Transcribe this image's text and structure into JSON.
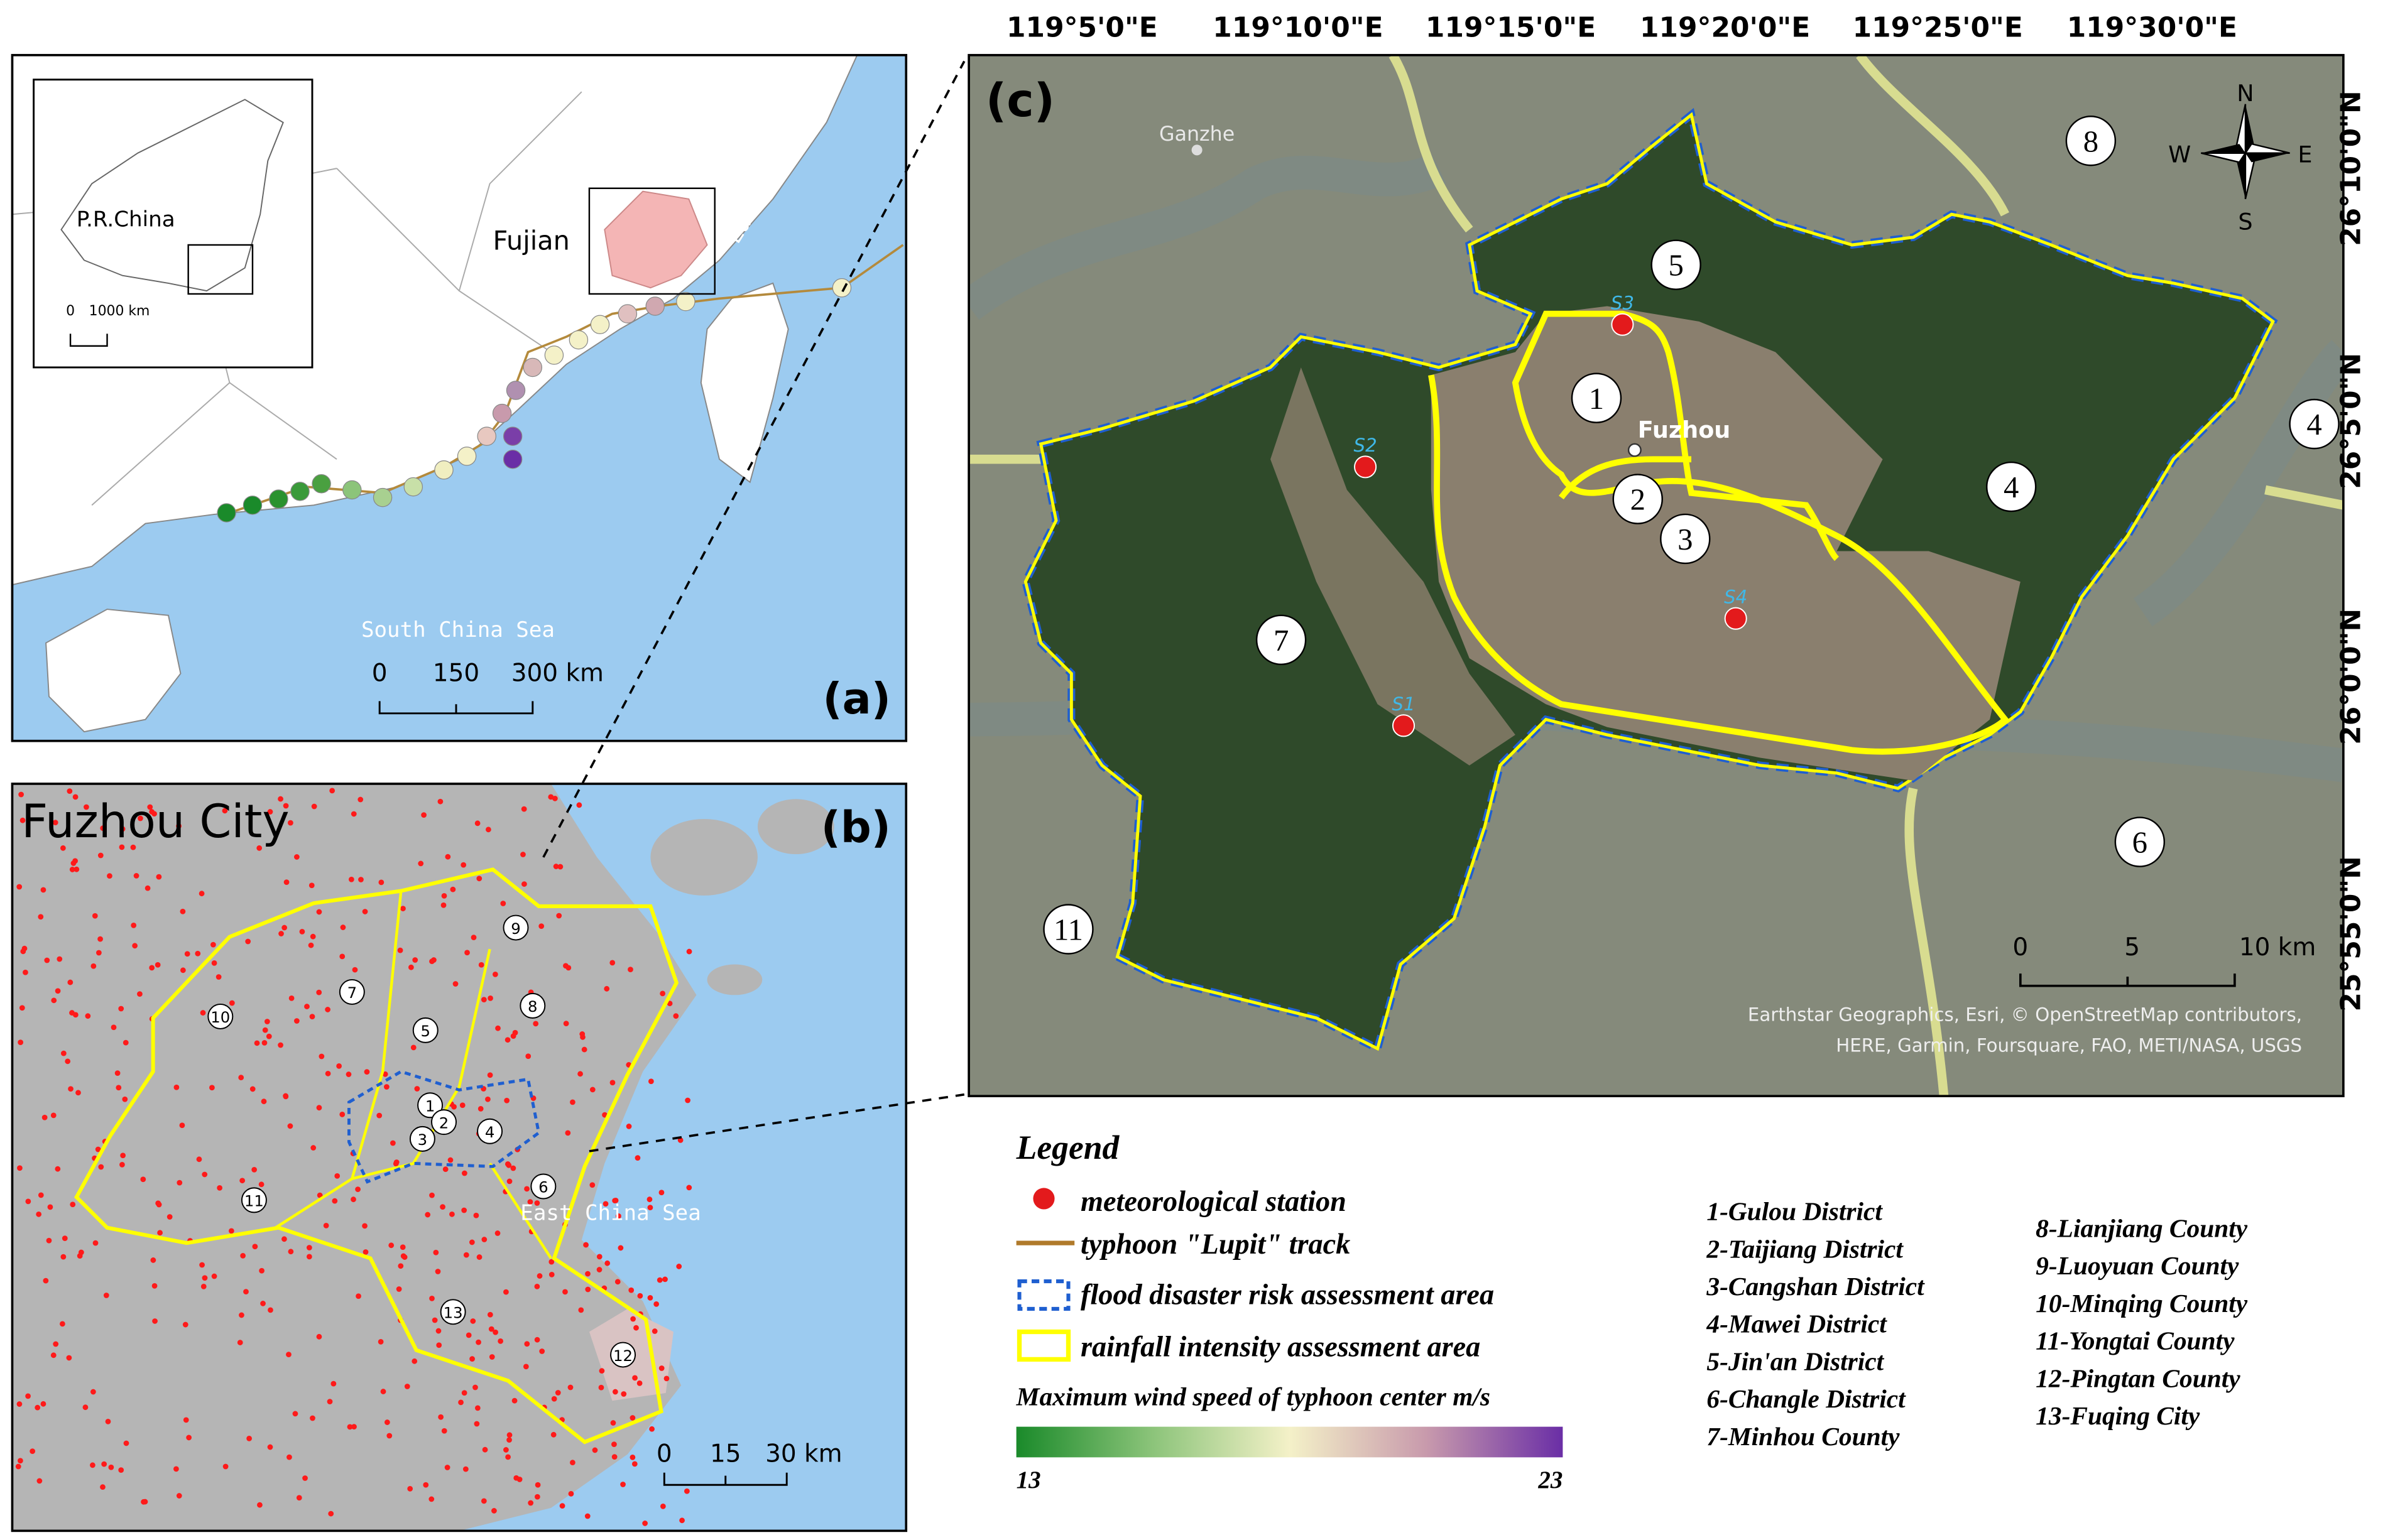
{
  "panel_a": {
    "label": "(a)",
    "inset_country": "P.R.China",
    "inset_scale": [
      "0",
      "1000 km"
    ],
    "province": "Fujian",
    "sea_east": "East China Sea",
    "sea_south": "South China Sea",
    "scale": [
      "0",
      "150",
      "300 km"
    ]
  },
  "panel_b": {
    "title": "Fuzhou City",
    "label": "(b)",
    "sea": "East China Sea",
    "district_numbers": [
      "1",
      "2",
      "3",
      "4",
      "5",
      "6",
      "7",
      "8",
      "9",
      "10",
      "11",
      "12",
      "13"
    ],
    "scale": [
      "0",
      "15",
      "30 km"
    ]
  },
  "panel_c": {
    "label": "(c)",
    "lon_labels": [
      "119°5'0\"E",
      "119°10'0\"E",
      "119°15'0\"E",
      "119°20'0\"E",
      "119°25'0\"E",
      "119°30'0\"E"
    ],
    "lat_labels": [
      "26°10'0\"N",
      "26°5'0\"N",
      "26°0'0\"N",
      "25°55'0\"N"
    ],
    "places": [
      "Ganzhe",
      "Fuzhou"
    ],
    "district_numbers": [
      "1",
      "2",
      "3",
      "4",
      "5",
      "6",
      "7",
      "8",
      "11",
      "4"
    ],
    "stations": [
      "S1",
      "S2",
      "S3",
      "S4"
    ],
    "compass": [
      "N",
      "S",
      "W",
      "E"
    ],
    "scale": [
      "0",
      "5",
      "10 km"
    ],
    "attribution": [
      "Earthstar Geographics, Esri, © OpenStreetMap contributors,",
      "HERE, Garmin, Foursquare, FAO, METI/NASA, USGS"
    ]
  },
  "legend": {
    "title": "Legend",
    "items": [
      "meteorological station",
      "typhoon \"Lupit\" track",
      "flood disaster risk assessment area",
      "rainfall intensity assessment area"
    ],
    "districts": [
      "1-Gulou District",
      "2-Taijiang District",
      "3-Cangshan District",
      "4-Mawei District",
      "5-Jin'an District",
      "6-Changle District",
      "7-Minhou County",
      "8-Lianjiang County",
      "9-Luoyuan County",
      "10-Minqing County",
      "11-Yongtai County",
      "12-Pingtan County",
      "13-Fuqing City"
    ],
    "colorbar_title": "Maximum wind speed of typhoon center m/s",
    "colorbar_min": 13,
    "colorbar_max": 23
  }
}
